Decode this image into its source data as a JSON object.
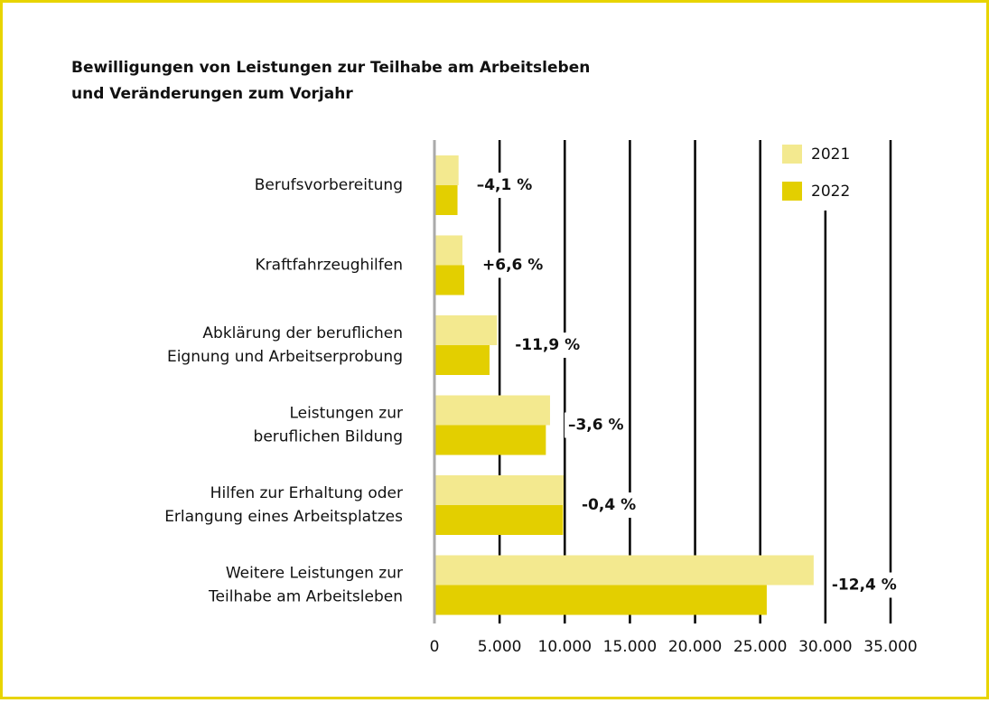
{
  "chart_data": {
    "type": "hbar",
    "title": [
      "Bewilligungen von Leistungen zur Teilhabe am Arbeitsleben",
      "und Veränderungen zum Vorjahr"
    ],
    "categories": [
      "Berufsvorbereitung",
      "Kraftfahrzeughilfen",
      "Abklärung der beruflichen\nEignung und Arbeitserprobung",
      "Leistungen zur\nberuflichen Bildung",
      "Hilfen zur Erhaltung oder\nErlangung eines Arbeitsplatzes",
      "Weitere Leistungen zur\nTeilhabe am Arbeitsleben"
    ],
    "series": [
      {
        "name": "2021",
        "color": "#f3e98f",
        "values": [
          1850,
          2150,
          4800,
          8870,
          9910,
          29100
        ]
      },
      {
        "name": "2022",
        "color": "#e3cf00",
        "values": [
          1770,
          2290,
          4230,
          8550,
          9870,
          25500
        ]
      }
    ],
    "changes": [
      "–4,1 %",
      "+6,6 %",
      "-11,9 %",
      "–3,6 %",
      "-0,4 %",
      "-12,4 %"
    ],
    "xlim": [
      0,
      35000
    ],
    "xticks": [
      0,
      {
        "value": 5000,
        "label": "5.000"
      },
      {
        "value": 10000,
        "label": "10.000"
      },
      {
        "value": 15000,
        "label": "15.000"
      },
      {
        "value": 20000,
        "label": "20.000"
      },
      {
        "value": 25000,
        "label": "25.000"
      },
      {
        "value": 30000,
        "label": "30.000"
      },
      {
        "value": 35000,
        "label": "35.000"
      }
    ],
    "grid": true,
    "legend": "top-right"
  }
}
